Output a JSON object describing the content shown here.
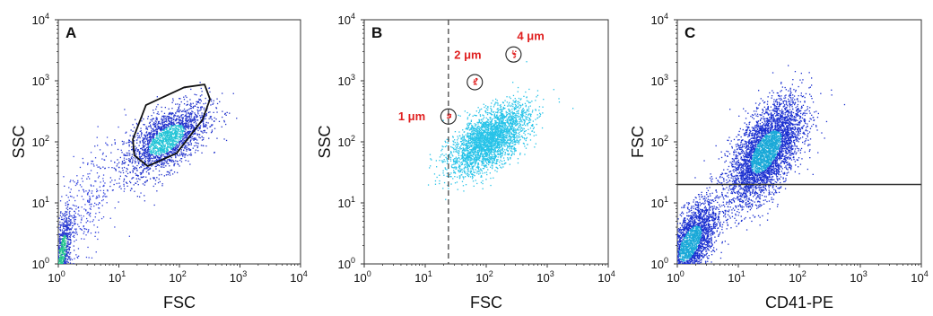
{
  "chart_data": [
    {
      "type": "scatter",
      "panel_label": "A",
      "xlabel": "FSC",
      "ylabel": "SSC",
      "x_scale": "log",
      "y_scale": "log",
      "xlim": [
        1,
        10000
      ],
      "ylim": [
        1,
        10000
      ],
      "x_ticks": [
        "10",
        "10",
        "10",
        "10",
        "10"
      ],
      "x_tick_exponents": [
        "0",
        "1",
        "2",
        "3",
        "4"
      ],
      "y_ticks": [
        "10",
        "10",
        "10",
        "10",
        "10"
      ],
      "y_tick_exponents": [
        "0",
        "1",
        "2",
        "3",
        "4"
      ],
      "density_clusters": [
        {
          "center": [
            60,
            110
          ],
          "spread_log": [
            0.35,
            0.3
          ],
          "count": 2200,
          "color": "#2233cc",
          "core_color": "#22c4d6"
        },
        {
          "center": [
            1.15,
            1.6
          ],
          "spread_log": [
            0.08,
            0.35
          ],
          "count": 700,
          "color": "#2233cc",
          "core_color": "#21c48a"
        },
        {
          "center": [
            2.5,
            8
          ],
          "spread_log": [
            0.3,
            0.5
          ],
          "count": 350,
          "color": "#3344dd",
          "core_color": "#3344dd"
        }
      ],
      "gate": {
        "shape": "polygon",
        "color": "#111111",
        "points": [
          [
            17,
            110
          ],
          [
            28,
            400
          ],
          [
            120,
            780
          ],
          [
            260,
            870
          ],
          [
            320,
            500
          ],
          [
            240,
            230
          ],
          [
            90,
            65
          ],
          [
            30,
            40
          ],
          [
            18,
            60
          ]
        ]
      }
    },
    {
      "type": "scatter",
      "panel_label": "B",
      "xlabel": "FSC",
      "ylabel": "SSC",
      "x_scale": "log",
      "y_scale": "log",
      "xlim": [
        1,
        10000
      ],
      "ylim": [
        1,
        10000
      ],
      "x_ticks": [
        "10",
        "10",
        "10",
        "10",
        "10"
      ],
      "x_tick_exponents": [
        "0",
        "1",
        "2",
        "3",
        "4"
      ],
      "y_ticks": [
        "10",
        "10",
        "10",
        "10",
        "10"
      ],
      "y_tick_exponents": [
        "0",
        "1",
        "2",
        "3",
        "4"
      ],
      "density_clusters": [
        {
          "center": [
            110,
            110
          ],
          "spread_log": [
            0.32,
            0.28
          ],
          "count": 3000,
          "color": "#27c3e8",
          "core_color": "#27c3e8"
        }
      ],
      "bead_gates": [
        {
          "label": "1 μm",
          "center": [
            24,
            260
          ],
          "color": "#e02020"
        },
        {
          "label": "2 μm",
          "center": [
            65,
            950
          ],
          "color": "#e02020"
        },
        {
          "label": "4 μm",
          "center": [
            280,
            2700
          ],
          "color": "#e02020"
        }
      ],
      "threshold_line": {
        "axis": "x",
        "value": 24,
        "style": "dashed",
        "color": "#444444"
      }
    },
    {
      "type": "scatter",
      "panel_label": "C",
      "xlabel": "CD41-PE",
      "ylabel": "FSC",
      "x_scale": "log",
      "y_scale": "log",
      "xlim": [
        1,
        10000
      ],
      "ylim": [
        1,
        10000
      ],
      "x_ticks": [
        "10",
        "10",
        "10",
        "10",
        "10"
      ],
      "x_tick_exponents": [
        "0",
        "1",
        "2",
        "3",
        "4"
      ],
      "y_ticks": [
        "10",
        "10",
        "10",
        "10",
        "10"
      ],
      "y_tick_exponents": [
        "0",
        "1",
        "2",
        "3",
        "4"
      ],
      "density_clusters": [
        {
          "center": [
            28,
            70
          ],
          "spread_log": [
            0.3,
            0.42
          ],
          "count": 4200,
          "color": "#1a2fd0",
          "core_color": "#1aa9d8"
        },
        {
          "center": [
            1.6,
            2.2
          ],
          "spread_log": [
            0.22,
            0.35
          ],
          "count": 2600,
          "color": "#1a2fd0",
          "core_color": "#1aa9d8"
        }
      ],
      "threshold_line": {
        "axis": "y",
        "value": 20,
        "style": "solid",
        "color": "#333333"
      }
    }
  ]
}
